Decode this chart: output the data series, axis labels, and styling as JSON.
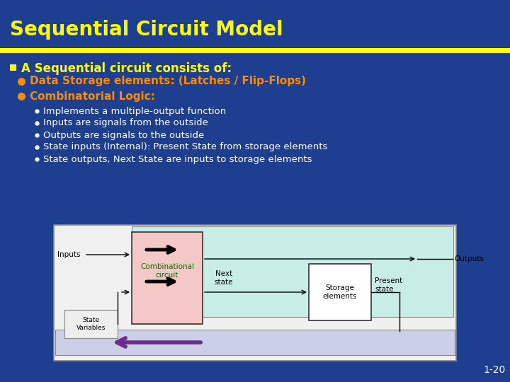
{
  "title": "Sequential Circuit Model",
  "title_color": "#FFFF00",
  "title_fontsize": 20,
  "bg_color": "#1e3f8f",
  "separator_color": "#FFFF00",
  "main_bullet_color": "#FFFF00",
  "main_bullet_text": "A Sequential circuit consists of:",
  "sub_bullet_color": "#FF8C00",
  "sub_sub_bullet_color": "#FFFFFF",
  "sub_sub_bullets": [
    "Implements a multiple-output function",
    "Inputs are signals from the outside",
    "Outputs are signals to the outside",
    "State inputs (Internal): Present State from storage elements",
    "State outputs, Next State are inputs to storage elements"
  ],
  "page_num": "1-20",
  "page_num_color": "#FFFFFF",
  "teal_bg": "#c8ede6",
  "pink_box_color": "#f5c8c8",
  "storage_box_color": "#ffffff",
  "feedback_bar_color": "#cccfe8",
  "feedback_arrow_color": "#6b2d8b",
  "outer_diagram_bg": "#f0f0f0",
  "diagram_border_color": "#888888"
}
